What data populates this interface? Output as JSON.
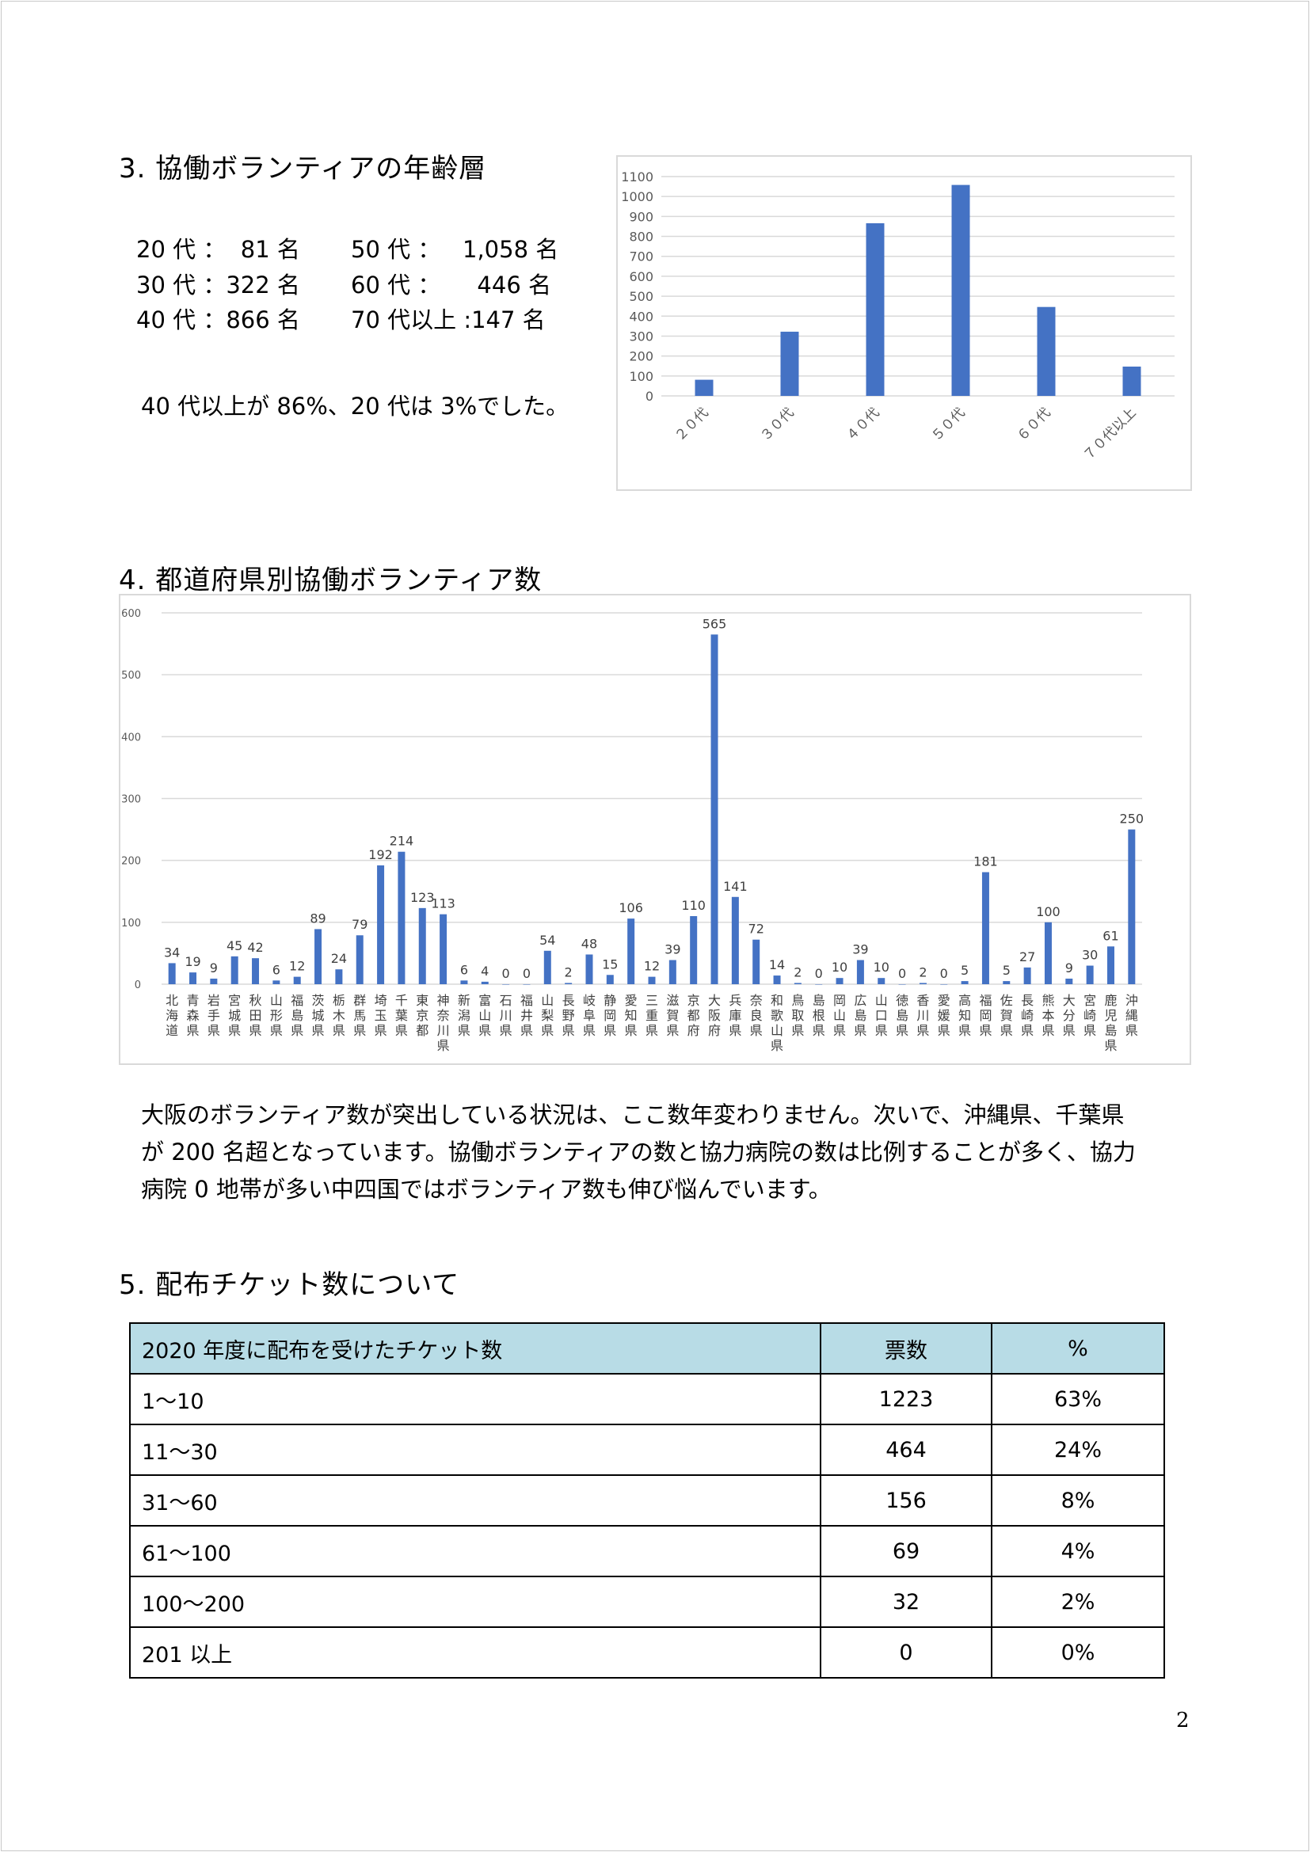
{
  "section3": {
    "heading": "3. 協働ボランティアの年齢層",
    "lines": [
      [
        "20 代 ：  81 名",
        "50 代 ：   1,058 名"
      ],
      [
        "30 代 ：322 名",
        "60 代 ：     446 名"
      ],
      [
        "40 代 ：866 名",
        "70 代以上 :147 名"
      ]
    ],
    "summary": "40 代以上が 86%、20 代は 3%でした。"
  },
  "section4": {
    "heading": "4. 都道府県別協働ボランティア数",
    "paragraph": [
      "大阪のボランティア数が突出している状況は、ここ数年変わりません。次いで、沖縄県、千葉県",
      "が 200 名超となっています。協働ボランティアの数と協力病院の数は比例することが多く、協力",
      "病院 0 地帯が多い中四国ではボランティア数も伸び悩んでいます。"
    ]
  },
  "section5": {
    "heading": "5. 配布チケット数について",
    "table": {
      "headers": [
        "2020 年度に配布を受けたチケット数",
        "票数",
        "%"
      ],
      "rows": [
        [
          "1～10",
          "1223",
          "63%"
        ],
        [
          "11～30",
          "464",
          "24%"
        ],
        [
          "31～60",
          "156",
          "8%"
        ],
        [
          "61～100",
          "69",
          "4%"
        ],
        [
          "100～200",
          "32",
          "2%"
        ],
        [
          "201 以上",
          "0",
          "0%"
        ]
      ]
    }
  },
  "page_number": "2",
  "chart_data": [
    {
      "type": "bar",
      "categories": [
        "２０代",
        "３０代",
        "４０代",
        "５０代",
        "６０代",
        "７０代以上"
      ],
      "values": [
        81,
        322,
        866,
        1058,
        446,
        147
      ],
      "ylim": [
        0,
        1100
      ],
      "yticks": [
        0,
        100,
        200,
        300,
        400,
        500,
        600,
        700,
        800,
        900,
        1000,
        1100
      ],
      "grid": true,
      "color": "#4472c4"
    },
    {
      "type": "bar",
      "categories": [
        "北海道",
        "青森県",
        "岩手県",
        "宮城県",
        "秋田県",
        "山形県",
        "福島県",
        "茨城県",
        "栃木県",
        "群馬県",
        "埼玉県",
        "千葉県",
        "東京都",
        "神奈川県",
        "新潟県",
        "富山県",
        "石川県",
        "福井県",
        "山梨県",
        "長野県",
        "岐阜県",
        "静岡県",
        "愛知県",
        "三重県",
        "滋賀県",
        "京都府",
        "大阪府",
        "兵庫県",
        "奈良県",
        "和歌山県",
        "鳥取県",
        "島根県",
        "岡山県",
        "広島県",
        "山口県",
        "徳島県",
        "香川県",
        "愛媛県",
        "高知県",
        "福岡県",
        "佐賀県",
        "長崎県",
        "熊本県",
        "大分県",
        "宮崎県",
        "鹿児島県",
        "沖縄県"
      ],
      "values": [
        34,
        19,
        9,
        45,
        42,
        6,
        12,
        89,
        24,
        79,
        192,
        214,
        123,
        113,
        6,
        4,
        0,
        0,
        54,
        2,
        48,
        15,
        106,
        12,
        39,
        110,
        565,
        141,
        72,
        14,
        2,
        0,
        10,
        39,
        10,
        0,
        2,
        0,
        5,
        181,
        5,
        27,
        100,
        9,
        30,
        61,
        250
      ],
      "ylim": [
        0,
        600
      ],
      "yticks": [
        0,
        100,
        200,
        300,
        400,
        500,
        600
      ],
      "grid": true,
      "data_labels": true,
      "color": "#4472c4"
    }
  ]
}
